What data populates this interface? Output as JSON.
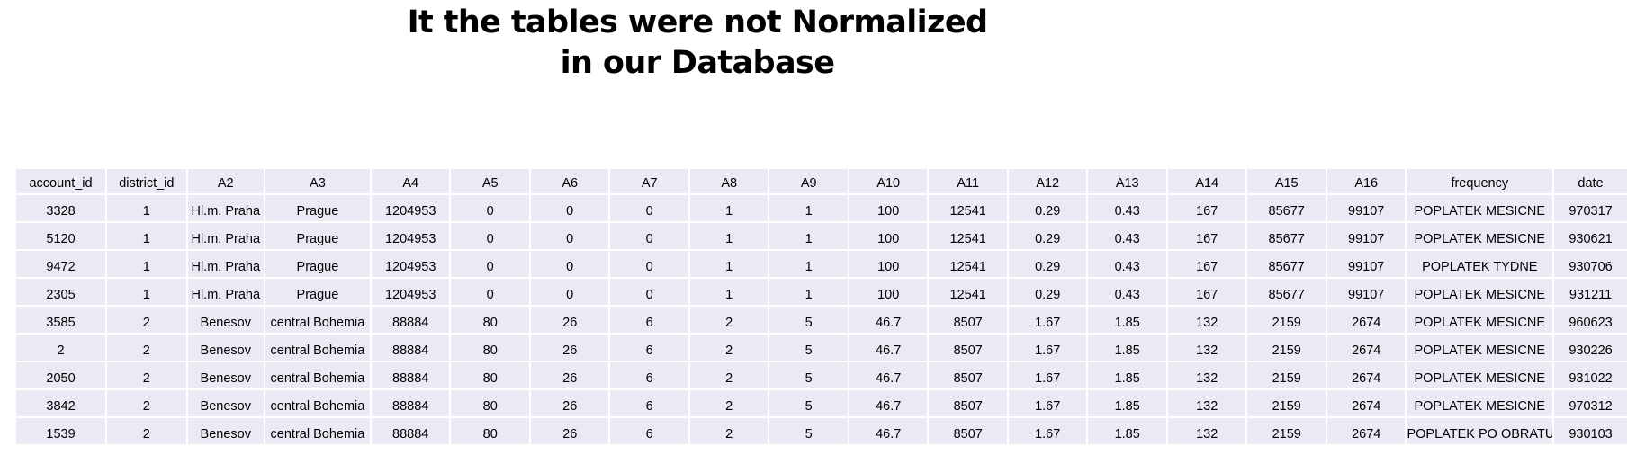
{
  "title": {
    "line1": "It the tables were not Normalized",
    "line2": "in our Database"
  },
  "table": {
    "headers": [
      "account_id",
      "district_id",
      "A2",
      "A3",
      "A4",
      "A5",
      "A6",
      "A7",
      "A8",
      "A9",
      "A10",
      "A11",
      "A12",
      "A13",
      "A14",
      "A15",
      "A16",
      "frequency",
      "date"
    ],
    "rows": [
      [
        "3328",
        "1",
        "Hl.m. Praha",
        "Prague",
        "1204953",
        "0",
        "0",
        "0",
        "1",
        "1",
        "100",
        "12541",
        "0.29",
        "0.43",
        "167",
        "85677",
        "99107",
        "POPLATEK MESICNE",
        "970317"
      ],
      [
        "5120",
        "1",
        "Hl.m. Praha",
        "Prague",
        "1204953",
        "0",
        "0",
        "0",
        "1",
        "1",
        "100",
        "12541",
        "0.29",
        "0.43",
        "167",
        "85677",
        "99107",
        "POPLATEK MESICNE",
        "930621"
      ],
      [
        "9472",
        "1",
        "Hl.m. Praha",
        "Prague",
        "1204953",
        "0",
        "0",
        "0",
        "1",
        "1",
        "100",
        "12541",
        "0.29",
        "0.43",
        "167",
        "85677",
        "99107",
        "POPLATEK TYDNE",
        "930706"
      ],
      [
        "2305",
        "1",
        "Hl.m. Praha",
        "Prague",
        "1204953",
        "0",
        "0",
        "0",
        "1",
        "1",
        "100",
        "12541",
        "0.29",
        "0.43",
        "167",
        "85677",
        "99107",
        "POPLATEK MESICNE",
        "931211"
      ],
      [
        "3585",
        "2",
        "Benesov",
        "central Bohemia",
        "88884",
        "80",
        "26",
        "6",
        "2",
        "5",
        "46.7",
        "8507",
        "1.67",
        "1.85",
        "132",
        "2159",
        "2674",
        "POPLATEK MESICNE",
        "960623"
      ],
      [
        "2",
        "2",
        "Benesov",
        "central Bohemia",
        "88884",
        "80",
        "26",
        "6",
        "2",
        "5",
        "46.7",
        "8507",
        "1.67",
        "1.85",
        "132",
        "2159",
        "2674",
        "POPLATEK MESICNE",
        "930226"
      ],
      [
        "2050",
        "2",
        "Benesov",
        "central Bohemia",
        "88884",
        "80",
        "26",
        "6",
        "2",
        "5",
        "46.7",
        "8507",
        "1.67",
        "1.85",
        "132",
        "2159",
        "2674",
        "POPLATEK MESICNE",
        "931022"
      ],
      [
        "3842",
        "2",
        "Benesov",
        "central Bohemia",
        "88884",
        "80",
        "26",
        "6",
        "2",
        "5",
        "46.7",
        "8507",
        "1.67",
        "1.85",
        "132",
        "2159",
        "2674",
        "POPLATEK MESICNE",
        "970312"
      ],
      [
        "1539",
        "2",
        "Benesov",
        "central Bohemia",
        "88884",
        "80",
        "26",
        "6",
        "2",
        "5",
        "46.7",
        "8507",
        "1.67",
        "1.85",
        "132",
        "2159",
        "2674",
        "POPLATEK PO OBRATU",
        "930103"
      ]
    ]
  },
  "colors": {
    "cell_background": "#e9eaf4",
    "page_background": "#ffffff"
  }
}
